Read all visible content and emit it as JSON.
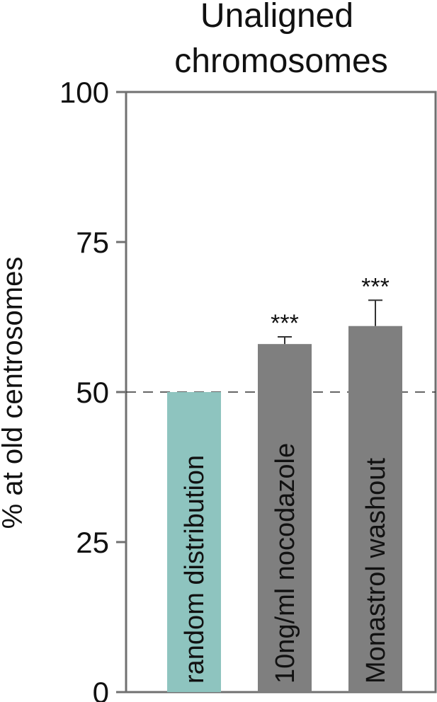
{
  "chart_data": {
    "type": "bar",
    "title_lines": [
      "Unaligned",
      "chromosomes"
    ],
    "ylabel": "% at old centrosomes",
    "ylim": [
      0,
      100
    ],
    "yticks": [
      0,
      25,
      50,
      75,
      100
    ],
    "yticks_labels": [
      "0",
      "25",
      "50",
      "75",
      "100"
    ],
    "reference_line": 50,
    "categories": [
      "random distribution",
      "10ng/ml nocodazole",
      "Monastrol washout"
    ],
    "values": [
      50,
      58,
      61
    ],
    "error_upper": [
      null,
      1.2,
      4.3
    ],
    "significance": [
      "",
      "***",
      "***"
    ],
    "colors": [
      "#8ec4bf",
      "#7f7f7f",
      "#7f7f7f"
    ],
    "axis_color": "#707070",
    "grid": false
  }
}
